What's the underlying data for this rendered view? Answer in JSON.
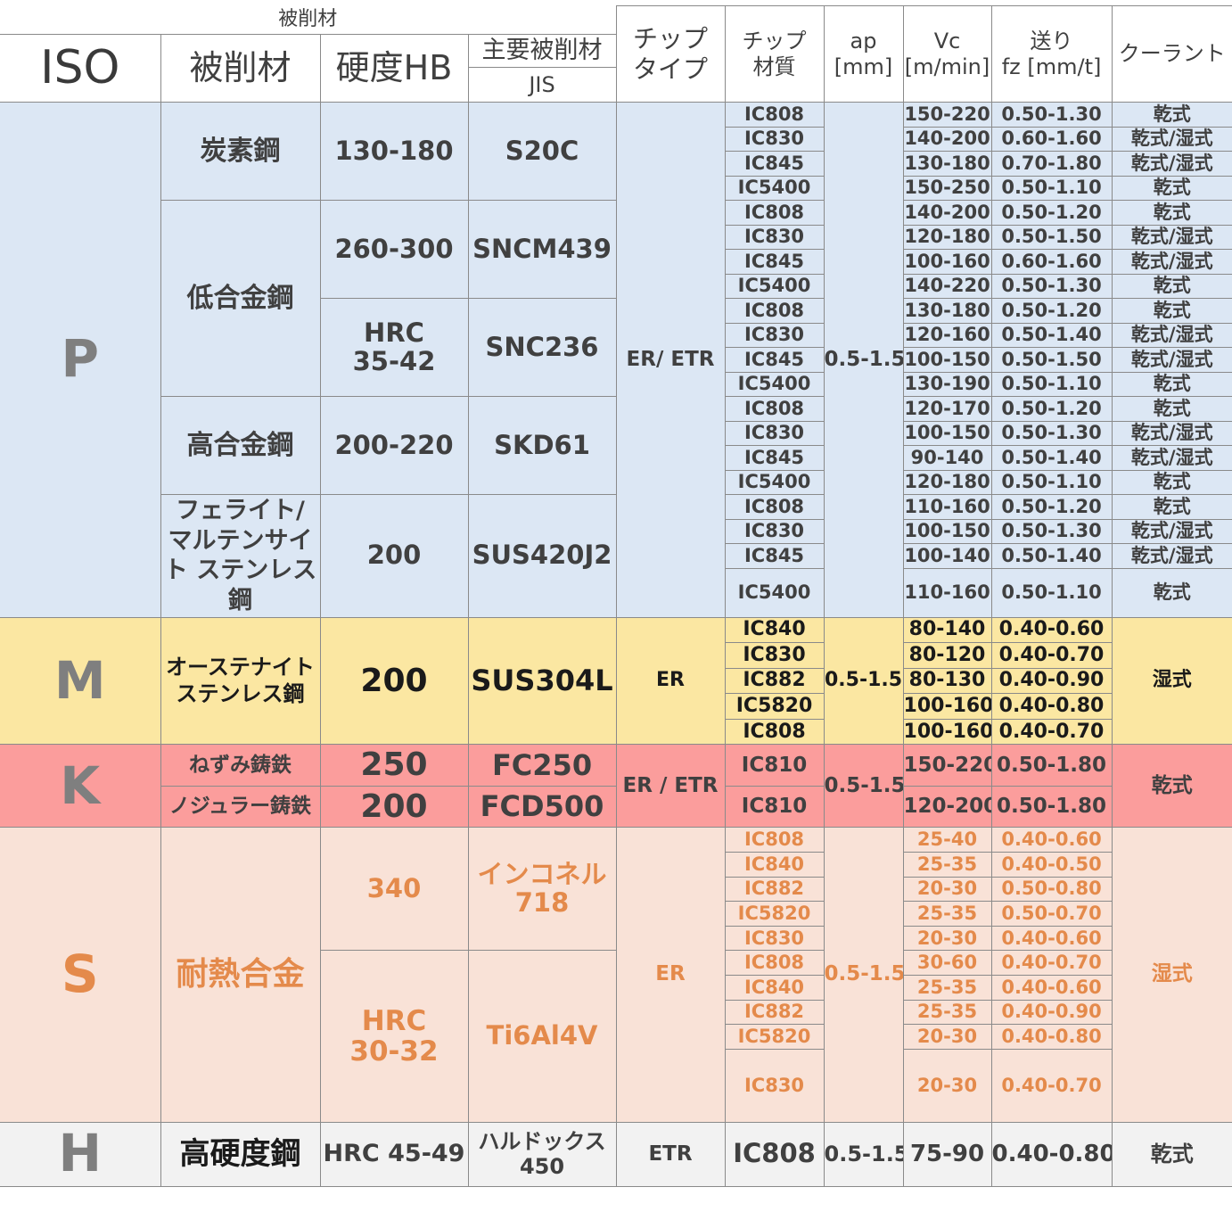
{
  "header": {
    "group_label": "被削材",
    "iso": "ISO",
    "material": "被削材",
    "hardness": "硬度HB",
    "main_material": "主要被削材",
    "jis": "JIS",
    "chip_type": [
      "チップ",
      "タイプ"
    ],
    "chip_grade": [
      "チップ",
      "材質"
    ],
    "ap": [
      "ap",
      "[mm]"
    ],
    "vc": [
      "Vc",
      "[m/min]"
    ],
    "feed": [
      "送り",
      "fz [mm/t]"
    ],
    "coolant": "クーラント"
  },
  "P": {
    "iso": "P",
    "chip_type": "ER/ ETR",
    "ap": "0.5-1.5",
    "groups": [
      {
        "material": "炭素鋼",
        "hardness": "130-180",
        "jis": "S20C"
      },
      {
        "material": "低合金鋼",
        "hardness": "260-300",
        "jis": "SNCM439"
      },
      {
        "material": "",
        "hardness": "HRC\n35-42",
        "jis": "SNC236"
      },
      {
        "material": "高合金鋼",
        "hardness": "200-220",
        "jis": "SKD61"
      },
      {
        "material": "フェライト/ マルテンサイト ステンレス鋼",
        "hardness": "200",
        "jis": "SUS420J2"
      }
    ],
    "rows": [
      {
        "grade": "IC808",
        "vc": "150-220",
        "fz": "0.50-1.30",
        "coolant": "乾式"
      },
      {
        "grade": "IC830",
        "vc": "140-200",
        "fz": "0.60-1.60",
        "coolant": "乾式/湿式"
      },
      {
        "grade": "IC845",
        "vc": "130-180",
        "fz": "0.70-1.80",
        "coolant": "乾式/湿式"
      },
      {
        "grade": "IC5400",
        "vc": "150-250",
        "fz": "0.50-1.10",
        "coolant": "乾式"
      },
      {
        "grade": "IC808",
        "vc": "140-200",
        "fz": "0.50-1.20",
        "coolant": "乾式"
      },
      {
        "grade": "IC830",
        "vc": "120-180",
        "fz": "0.50-1.50",
        "coolant": "乾式/湿式"
      },
      {
        "grade": "IC845",
        "vc": "100-160",
        "fz": "0.60-1.60",
        "coolant": "乾式/湿式"
      },
      {
        "grade": "IC5400",
        "vc": "140-220",
        "fz": "0.50-1.30",
        "coolant": "乾式"
      },
      {
        "grade": "IC808",
        "vc": "130-180",
        "fz": "0.50-1.20",
        "coolant": "乾式"
      },
      {
        "grade": "IC830",
        "vc": "120-160",
        "fz": "0.50-1.40",
        "coolant": "乾式/湿式"
      },
      {
        "grade": "IC845",
        "vc": "100-150",
        "fz": "0.50-1.50",
        "coolant": "乾式/湿式"
      },
      {
        "grade": "IC5400",
        "vc": "130-190",
        "fz": "0.50-1.10",
        "coolant": "乾式"
      },
      {
        "grade": "IC808",
        "vc": "120-170",
        "fz": "0.50-1.20",
        "coolant": "乾式"
      },
      {
        "grade": "IC830",
        "vc": "100-150",
        "fz": "0.50-1.30",
        "coolant": "乾式/湿式"
      },
      {
        "grade": "IC845",
        "vc": "90-140",
        "fz": "0.50-1.40",
        "coolant": "乾式/湿式"
      },
      {
        "grade": "IC5400",
        "vc": "120-180",
        "fz": "0.50-1.10",
        "coolant": "乾式"
      },
      {
        "grade": "IC808",
        "vc": "110-160",
        "fz": "0.50-1.20",
        "coolant": "乾式"
      },
      {
        "grade": "IC830",
        "vc": "100-150",
        "fz": "0.50-1.30",
        "coolant": "乾式/湿式"
      },
      {
        "grade": "IC845",
        "vc": "100-140",
        "fz": "0.50-1.40",
        "coolant": "乾式/湿式"
      },
      {
        "grade": "IC5400",
        "vc": "110-160",
        "fz": "0.50-1.10",
        "coolant": "乾式"
      }
    ]
  },
  "M": {
    "iso": "M",
    "material": "オーステナイト ステンレス鋼",
    "hardness": "200",
    "jis": "SUS304L",
    "chip_type": "ER",
    "ap": "0.5-1.5",
    "coolant": "湿式",
    "rows": [
      {
        "grade": "IC840",
        "vc": "80-140",
        "fz": "0.40-0.60"
      },
      {
        "grade": "IC830",
        "vc": "80-120",
        "fz": "0.40-0.70"
      },
      {
        "grade": "IC882",
        "vc": "80-130",
        "fz": "0.40-0.90"
      },
      {
        "grade": "IC5820",
        "vc": "100-160",
        "fz": "0.40-0.80"
      },
      {
        "grade": "IC808",
        "vc": "100-160",
        "fz": "0.40-0.70"
      }
    ]
  },
  "K": {
    "iso": "K",
    "chip_type": "ER / ETR",
    "ap": "0.5-1.5",
    "coolant": "乾式",
    "rows": [
      {
        "material": "ねずみ鋳鉄",
        "hardness": "250",
        "jis": "FC250",
        "grade": "IC810",
        "vc": "150-220",
        "fz": "0.50-1.80"
      },
      {
        "material": "ノジュラー鋳鉄",
        "hardness": "200",
        "jis": "FCD500",
        "grade": "IC810",
        "vc": "120-200",
        "fz": "0.50-1.80"
      }
    ]
  },
  "S": {
    "iso": "S",
    "material": "耐熱合金",
    "chip_type": "ER",
    "ap": "0.5-1.5",
    "coolant": "湿式",
    "groups": [
      {
        "hardness": "340",
        "jis": "インコネル\n718"
      },
      {
        "hardness": "HRC\n30-32",
        "jis": "Ti6Al4V"
      }
    ],
    "rows": [
      {
        "grade": "IC808",
        "vc": "25-40",
        "fz": "0.40-0.60"
      },
      {
        "grade": "IC840",
        "vc": "25-35",
        "fz": "0.40-0.50"
      },
      {
        "grade": "IC882",
        "vc": "20-30",
        "fz": "0.50-0.80"
      },
      {
        "grade": "IC5820",
        "vc": "25-35",
        "fz": "0.50-0.70"
      },
      {
        "grade": "IC830",
        "vc": "20-30",
        "fz": "0.40-0.60"
      },
      {
        "grade": "IC808",
        "vc": "30-60",
        "fz": "0.40-0.70"
      },
      {
        "grade": "IC840",
        "vc": "25-35",
        "fz": "0.40-0.60"
      },
      {
        "grade": "IC882",
        "vc": "25-35",
        "fz": "0.40-0.90"
      },
      {
        "grade": "IC5820",
        "vc": "20-30",
        "fz": "0.40-0.80"
      },
      {
        "grade": "IC830",
        "vc": "20-30",
        "fz": "0.40-0.70"
      }
    ]
  },
  "H": {
    "iso": "H",
    "material": "高硬度鋼",
    "hardness": "HRC 45-49",
    "jis": "ハルドックス\n450",
    "chip_type": "ETR",
    "grade": "IC808",
    "ap": "0.5-1.5",
    "vc": "75-90",
    "fz": "0.40-0.80",
    "coolant": "乾式"
  }
}
